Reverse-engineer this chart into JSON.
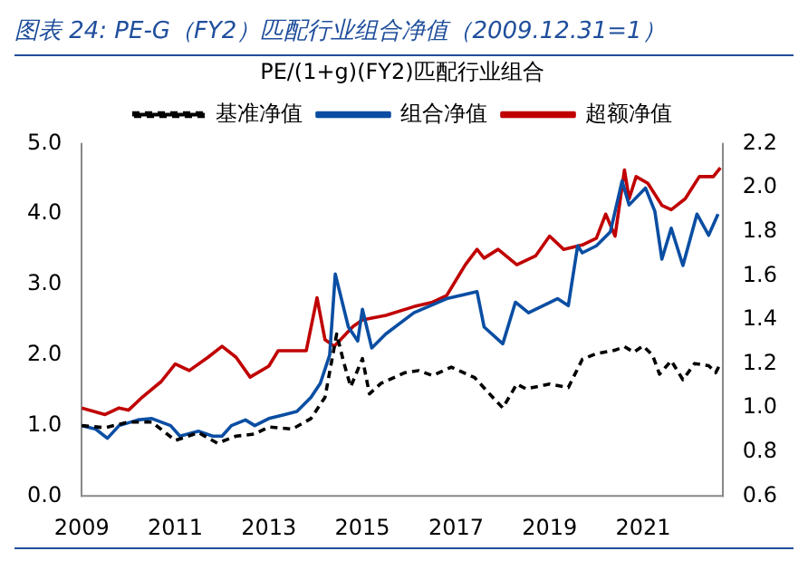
{
  "chart_data": {
    "type": "line",
    "title": "图表 24:  PE-G（FY2）匹配行业组合净值（2009.12.31=1）",
    "subtitle": "PE/(1+g)(FY2)匹配行业组合",
    "legend": "top",
    "grid": false,
    "marker": "none",
    "xlim": [
      2009,
      2022.7
    ],
    "xticks": [
      2009,
      2011,
      2013,
      2015,
      2017,
      2019,
      2021
    ],
    "ylim": [
      0,
      5
    ],
    "yticks": [
      {
        "value": 0,
        "label": "0.0"
      },
      {
        "value": 1,
        "label": "1.0"
      },
      {
        "value": 2,
        "label": "2.0"
      },
      {
        "value": 3,
        "label": "3.0"
      },
      {
        "value": 4,
        "label": "4.0"
      },
      {
        "value": 5,
        "label": "5.0"
      }
    ],
    "y2lim": [
      0.6,
      2.2
    ],
    "y2ticks": [
      0.6,
      0.8,
      {
        "value": 1,
        "label": "1.0"
      },
      1.2,
      1.4,
      1.6,
      1.8,
      {
        "value": 2,
        "label": "2.0"
      },
      2.2
    ],
    "series": [
      {
        "name": "基准净值",
        "color": "#000000",
        "line_style": "dashed",
        "x": [
          2009,
          2009.5,
          2010,
          2010.5,
          2011,
          2011.5,
          2011.9,
          2012.3,
          2012.7,
          2013,
          2013.5,
          2013.9,
          2014.2,
          2014.45,
          2014.6,
          2014.75,
          2015,
          2015.15,
          2015.4,
          2015.9,
          2016.2,
          2016.5,
          2016.9,
          2017.4,
          2017.8,
          2018,
          2018.3,
          2018.5,
          2019,
          2019.4,
          2019.7,
          2020,
          2020.4,
          2020.6,
          2020.8,
          2021,
          2021.2,
          2021.35,
          2021.6,
          2021.85,
          2022.1,
          2022.4,
          2022.55,
          2022.65
        ],
        "values": [
          1.0,
          0.97,
          1.05,
          1.05,
          0.79,
          0.9,
          0.75,
          0.85,
          0.88,
          0.98,
          0.95,
          1.1,
          1.4,
          2.3,
          1.9,
          1.55,
          1.95,
          1.45,
          1.6,
          1.75,
          1.78,
          1.71,
          1.83,
          1.68,
          1.39,
          1.25,
          1.59,
          1.52,
          1.59,
          1.54,
          1.94,
          2.02,
          2.07,
          2.12,
          2.04,
          2.13,
          2.0,
          1.73,
          1.92,
          1.65,
          1.88,
          1.85,
          1.75,
          1.88
        ]
      },
      {
        "name": "组合净值",
        "color": "#0a4ea3",
        "line_style": "solid",
        "x": [
          2009,
          2009.3,
          2009.55,
          2009.8,
          2010.2,
          2010.5,
          2010.9,
          2011.1,
          2011.5,
          2011.8,
          2012,
          2012.2,
          2012.5,
          2012.7,
          2013,
          2013.3,
          2013.6,
          2013.9,
          2014.1,
          2014.3,
          2014.42,
          2014.7,
          2014.9,
          2015,
          2015.2,
          2015.5,
          2016.1,
          2016.8,
          2017.45,
          2017.6,
          2018,
          2018.27,
          2018.55,
          2019.17,
          2019.4,
          2019.6,
          2019.7,
          2020,
          2020.3,
          2020.55,
          2020.7,
          2021.05,
          2021.25,
          2021.4,
          2021.6,
          2021.85,
          2022.15,
          2022.4,
          2022.6
        ],
        "values": [
          1.0,
          0.95,
          0.82,
          1.0,
          1.08,
          1.1,
          1.0,
          0.85,
          0.92,
          0.85,
          0.85,
          1.0,
          1.08,
          1.0,
          1.1,
          1.15,
          1.2,
          1.4,
          1.6,
          2.0,
          3.15,
          2.4,
          2.2,
          2.65,
          2.1,
          2.3,
          2.6,
          2.8,
          2.9,
          2.4,
          2.16,
          2.75,
          2.6,
          2.8,
          2.7,
          3.55,
          3.45,
          3.55,
          3.75,
          4.47,
          4.13,
          4.37,
          4.04,
          3.36,
          3.8,
          3.27,
          4.0,
          3.7,
          4.0
        ]
      },
      {
        "name": "超额净值",
        "color": "#c00000",
        "line_style": "solid",
        "axis": "y2",
        "x": [
          2009,
          2009.5,
          2009.8,
          2010,
          2010.3,
          2010.7,
          2011,
          2011.3,
          2011.7,
          2012,
          2012.3,
          2012.6,
          2013,
          2013.2,
          2013.5,
          2013.8,
          2014.03,
          2014.2,
          2014.4,
          2014.8,
          2015,
          2015.5,
          2016.1,
          2016.5,
          2016.8,
          2017.2,
          2017.45,
          2017.6,
          2017.9,
          2018.3,
          2018.7,
          2019,
          2019.3,
          2019.7,
          2020,
          2020.2,
          2020.4,
          2020.6,
          2020.7,
          2020.85,
          2021.1,
          2021.4,
          2021.6,
          2021.9,
          2022.2,
          2022.5,
          2022.65
        ],
        "values": [
          1.0,
          0.97,
          1.0,
          0.99,
          1.05,
          1.12,
          1.2,
          1.17,
          1.23,
          1.28,
          1.23,
          1.14,
          1.19,
          1.26,
          1.26,
          1.26,
          1.5,
          1.31,
          1.28,
          1.37,
          1.4,
          1.42,
          1.46,
          1.48,
          1.51,
          1.65,
          1.72,
          1.68,
          1.72,
          1.65,
          1.69,
          1.78,
          1.72,
          1.74,
          1.77,
          1.88,
          1.78,
          2.08,
          1.95,
          2.05,
          2.02,
          1.92,
          1.9,
          1.95,
          2.05,
          2.05,
          2.09
        ]
      }
    ]
  }
}
